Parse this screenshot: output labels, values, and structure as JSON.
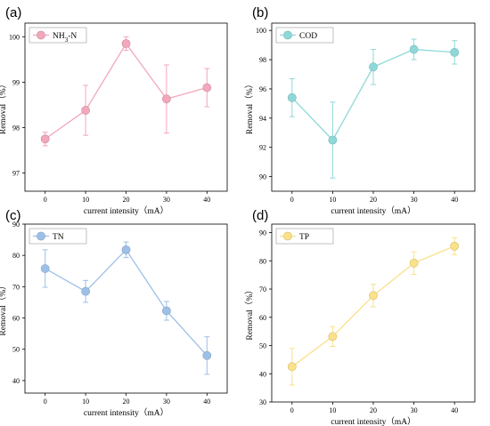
{
  "chart_data": [
    {
      "panel": "(a)",
      "type": "line",
      "x": [
        0,
        10,
        20,
        30,
        40
      ],
      "series": [
        {
          "name": "NH3-N",
          "values": [
            97.75,
            98.38,
            99.85,
            98.63,
            98.88
          ],
          "errors": [
            0.15,
            0.55,
            0.15,
            0.75,
            0.42
          ]
        }
      ],
      "xlabel": "current intensity（mA）",
      "ylabel": "Removal（%）",
      "xticks": [
        "0",
        "10",
        "20",
        "30",
        "40"
      ],
      "yticks": [
        "97",
        "98",
        "99",
        "100"
      ],
      "xlim": [
        -5,
        45
      ],
      "ylim": [
        96.6,
        100.3
      ],
      "color": "#f2a7bb",
      "legend": "top-left"
    },
    {
      "panel": "(b)",
      "type": "line",
      "x": [
        0,
        10,
        20,
        30,
        40
      ],
      "series": [
        {
          "name": "COD",
          "values": [
            95.4,
            92.5,
            97.5,
            98.7,
            98.5
          ],
          "errors": [
            1.3,
            2.6,
            1.2,
            0.7,
            0.8
          ]
        }
      ],
      "xlabel": "current intensity（mA）",
      "ylabel": "Removal（%）",
      "xticks": [
        "0",
        "10",
        "20",
        "30",
        "40"
      ],
      "yticks": [
        "90",
        "92",
        "94",
        "96",
        "98",
        "100"
      ],
      "xlim": [
        -5,
        45
      ],
      "ylim": [
        89,
        100.5
      ],
      "color": "#8fd8d8",
      "legend": "top-left"
    },
    {
      "panel": "(c)",
      "type": "line",
      "x": [
        0,
        10,
        20,
        30,
        40
      ],
      "series": [
        {
          "name": "TN",
          "values": [
            75.8,
            68.5,
            81.8,
            62.3,
            48.0
          ],
          "errors": [
            6.0,
            3.5,
            2.5,
            3.0,
            6.0
          ]
        }
      ],
      "xlabel": "current intensity（mA）",
      "ylabel": "Removal（%）",
      "xticks": [
        "0",
        "10",
        "20",
        "30",
        "40"
      ],
      "yticks": [
        "40",
        "50",
        "60",
        "70",
        "80",
        "90"
      ],
      "xlim": [
        -5,
        45
      ],
      "ylim": [
        36,
        90
      ],
      "color": "#9ec0e6",
      "legend": "top-left"
    },
    {
      "panel": "(d)",
      "type": "line",
      "x": [
        0,
        10,
        20,
        30,
        40
      ],
      "series": [
        {
          "name": "TP",
          "values": [
            42.5,
            53.2,
            67.7,
            79.2,
            85.2
          ],
          "errors": [
            6.5,
            3.5,
            4.0,
            4.0,
            3.0
          ]
        }
      ],
      "xlabel": "current intensity（mA）",
      "ylabel": "Removal（%）",
      "xticks": [
        "0",
        "10",
        "20",
        "30",
        "40"
      ],
      "yticks": [
        "30",
        "40",
        "50",
        "60",
        "70",
        "80",
        "90"
      ],
      "xlim": [
        -5,
        45
      ],
      "ylim": [
        30,
        93
      ],
      "color": "#fae18a",
      "legend": "top-left"
    }
  ]
}
